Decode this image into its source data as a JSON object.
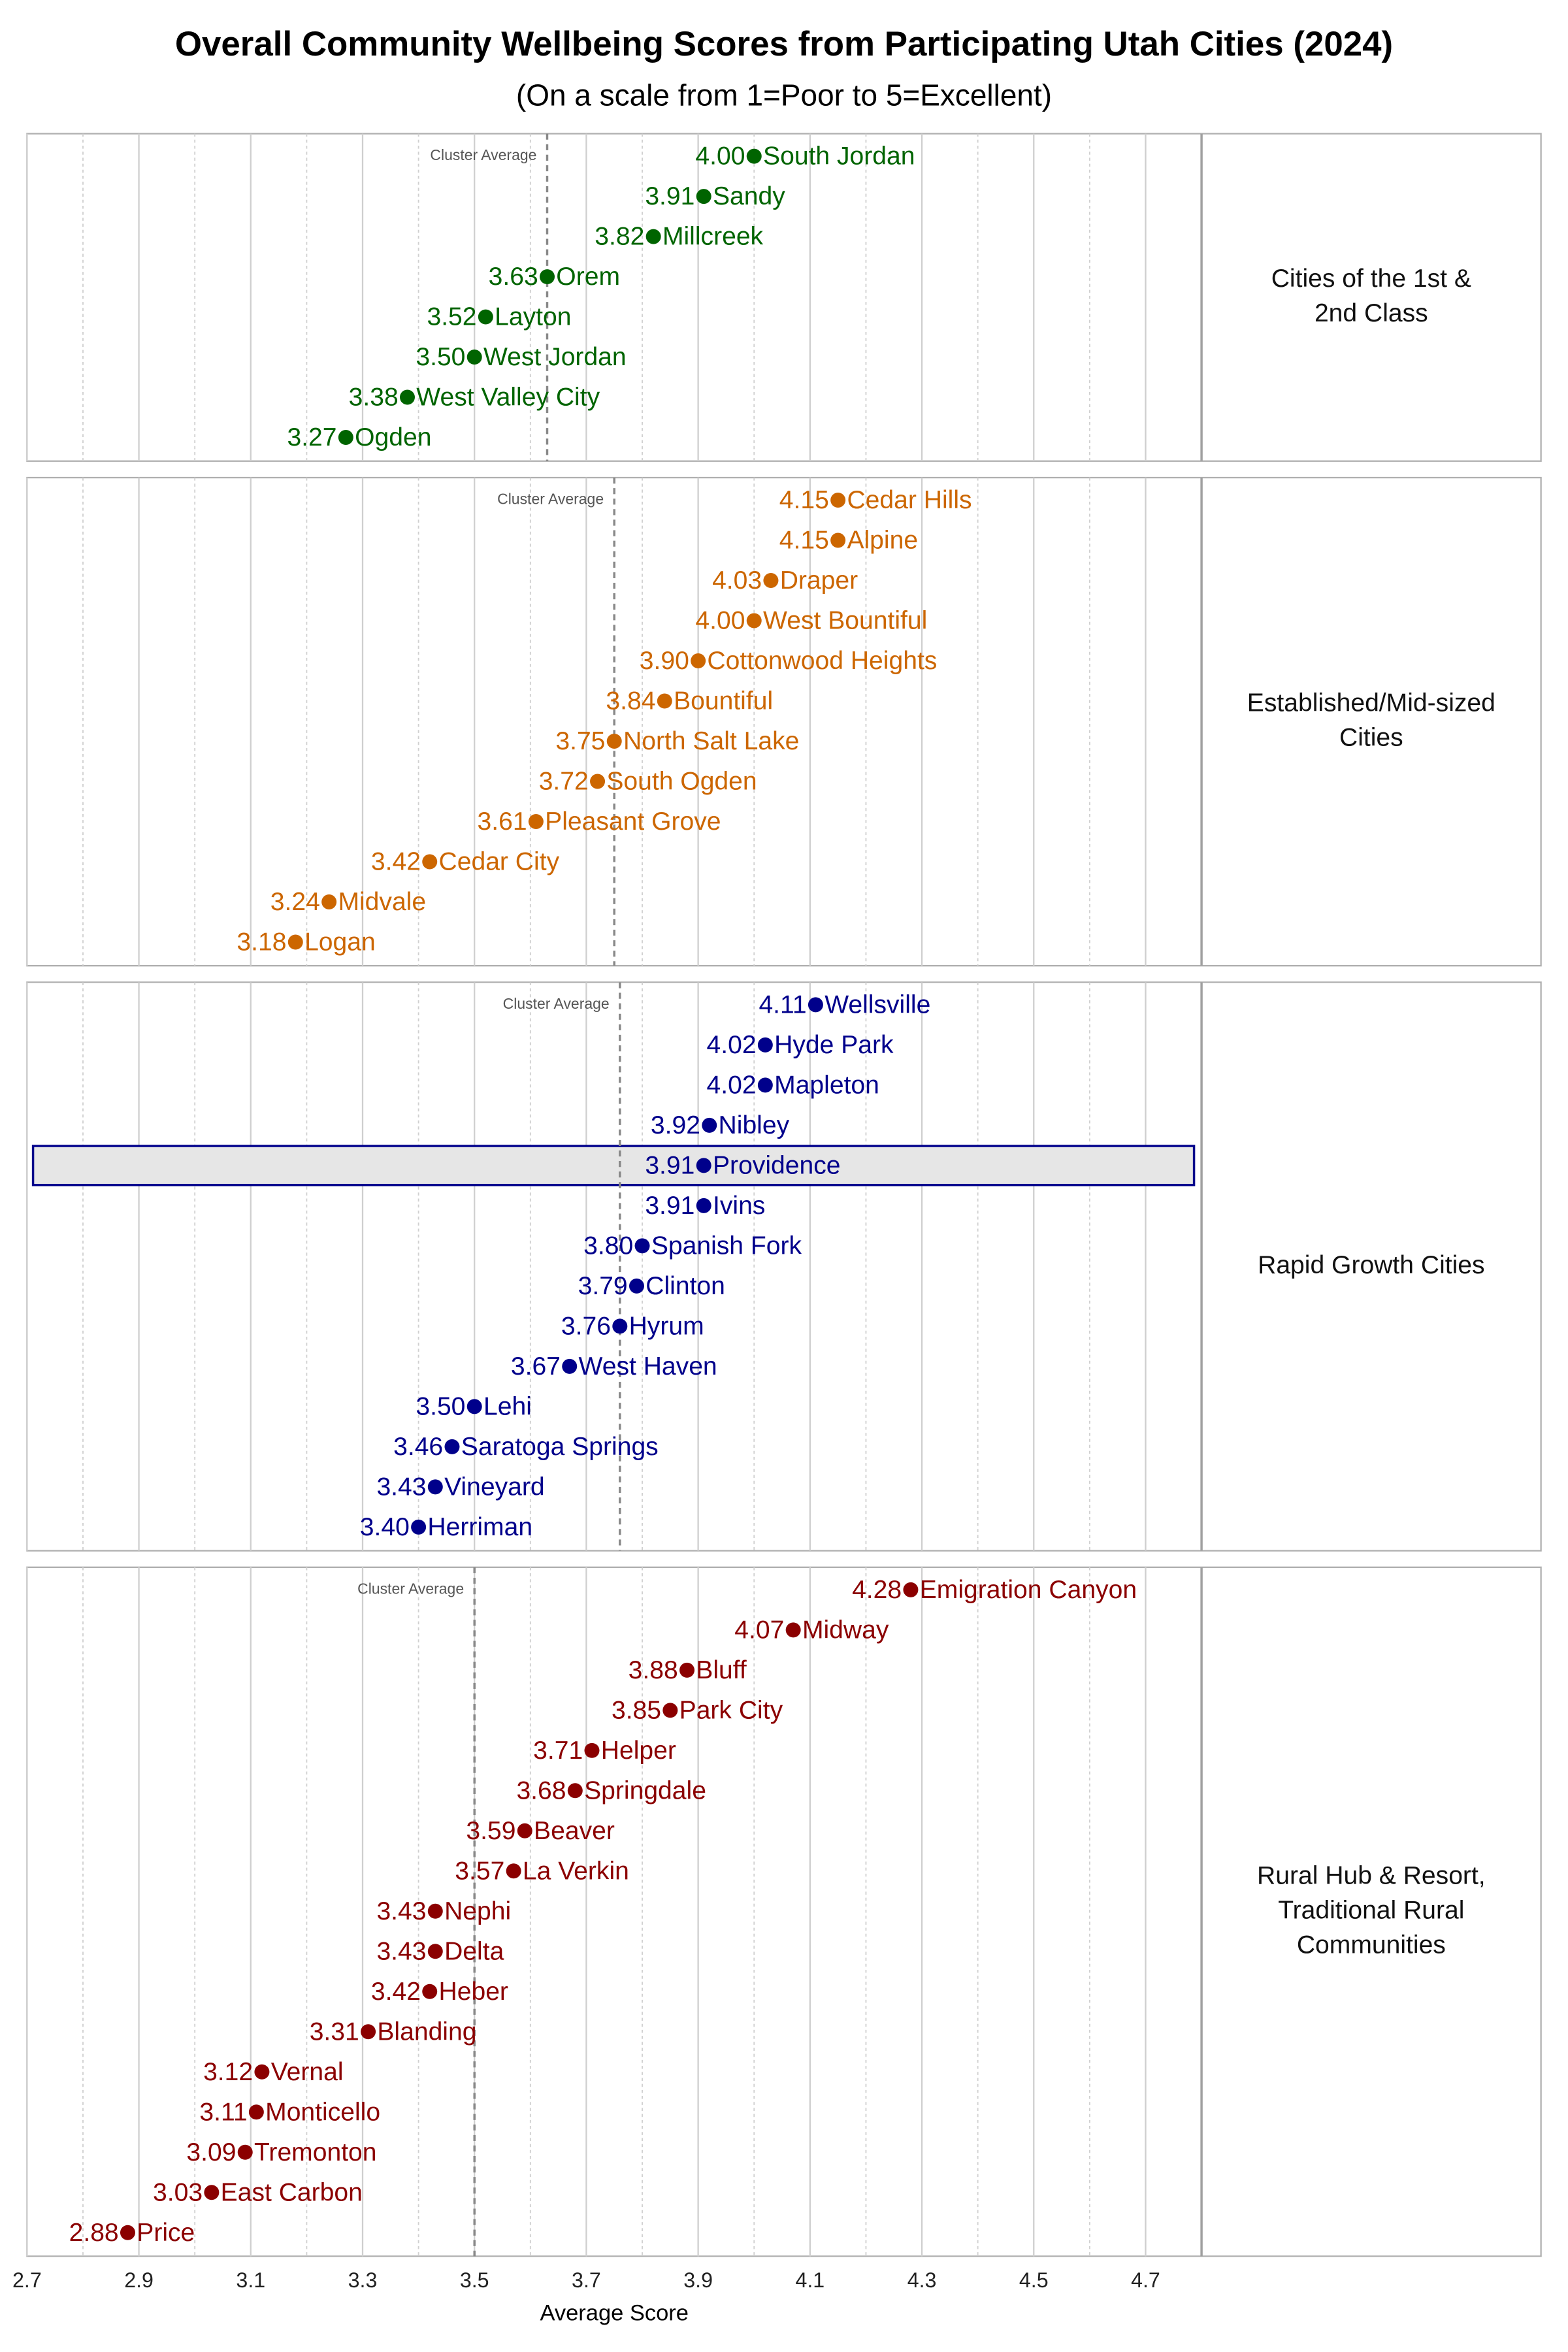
{
  "chart_data": {
    "type": "dot",
    "title": "Overall Community Wellbeing Scores from Participating Utah Cities (2024)",
    "subtitle": "(On a scale from 1=Poor to 5=Excellent)",
    "x_label": "Average Score",
    "xlim": [
      2.7,
      4.8
    ],
    "xticks": [
      2.7,
      2.9,
      3.1,
      3.3,
      3.5,
      3.7,
      3.9,
      4.1,
      4.3,
      4.5,
      4.7
    ],
    "minor_xticks": [
      2.8,
      3.0,
      3.2,
      3.4,
      3.6,
      3.8,
      4.0,
      4.2,
      4.4,
      4.6,
      4.8
    ],
    "grid": true,
    "panels": [
      {
        "label_lines": [
          "Cities of the 1st &",
          "2nd Class"
        ],
        "color": "#006400",
        "cluster_average_label": "Cluster Average",
        "cluster_average": 3.63,
        "categories": [
          "South Jordan",
          "Sandy",
          "Millcreek",
          "Orem",
          "Layton",
          "West Jordan",
          "West Valley City",
          "Ogden"
        ],
        "values": [
          4.0,
          3.91,
          3.82,
          3.63,
          3.52,
          3.5,
          3.38,
          3.27
        ],
        "value_labels": [
          "4.00",
          "3.91",
          "3.82",
          "3.63",
          "3.52",
          "3.50",
          "3.38",
          "3.27"
        ]
      },
      {
        "label_lines": [
          "Established/Mid-sized",
          "Cities"
        ],
        "color": "#cc6600",
        "cluster_average_label": "Cluster Average",
        "cluster_average": 3.75,
        "categories": [
          "Cedar Hills",
          "Alpine",
          "Draper",
          "West Bountiful",
          "Cottonwood Heights",
          "Bountiful",
          "North Salt Lake",
          "South Ogden",
          "Pleasant Grove",
          "Cedar City",
          "Midvale",
          "Logan"
        ],
        "values": [
          4.15,
          4.15,
          4.03,
          4.0,
          3.9,
          3.84,
          3.75,
          3.72,
          3.61,
          3.42,
          3.24,
          3.18
        ],
        "value_labels": [
          "4.15",
          "4.15",
          "4.03",
          "4.00",
          "3.90",
          "3.84",
          "3.75",
          "3.72",
          "3.61",
          "3.42",
          "3.24",
          "3.18"
        ]
      },
      {
        "label_lines": [
          "Rapid Growth Cities"
        ],
        "color": "#00008b",
        "cluster_average_label": "Cluster Average",
        "cluster_average": 3.76,
        "highlight": "Providence",
        "categories": [
          "Wellsville",
          "Hyde Park",
          "Mapleton",
          "Nibley",
          "Providence",
          "Ivins",
          "Spanish Fork",
          "Clinton",
          "Hyrum",
          "West Haven",
          "Lehi",
          "Saratoga Springs",
          "Vineyard",
          "Herriman"
        ],
        "values": [
          4.11,
          4.02,
          4.02,
          3.92,
          3.91,
          3.91,
          3.8,
          3.79,
          3.76,
          3.67,
          3.5,
          3.46,
          3.43,
          3.4
        ],
        "value_labels": [
          "4.11",
          "4.02",
          "4.02",
          "3.92",
          "3.91",
          "3.91",
          "3.80",
          "3.79",
          "3.76",
          "3.67",
          "3.50",
          "3.46",
          "3.43",
          "3.40"
        ]
      },
      {
        "label_lines": [
          "Rural Hub & Resort,",
          "Traditional Rural",
          "Communities"
        ],
        "color": "#8b0000",
        "cluster_average_label": "Cluster Average",
        "cluster_average": 3.5,
        "categories": [
          "Emigration Canyon",
          "Midway",
          "Bluff",
          "Park City",
          "Helper",
          "Springdale",
          "Beaver",
          "La Verkin",
          "Nephi",
          "Delta",
          "Heber",
          "Blanding",
          "Vernal",
          "Monticello",
          "Tremonton",
          "East Carbon",
          "Price"
        ],
        "values": [
          4.28,
          4.07,
          3.88,
          3.85,
          3.71,
          3.68,
          3.59,
          3.57,
          3.43,
          3.43,
          3.42,
          3.31,
          3.12,
          3.11,
          3.09,
          3.03,
          2.88
        ],
        "value_labels": [
          "4.28",
          "4.07",
          "3.88",
          "3.85",
          "3.71",
          "3.68",
          "3.59",
          "3.57",
          "3.43",
          "3.43",
          "3.42",
          "3.31",
          "3.12",
          "3.11",
          "3.09",
          "3.03",
          "2.88"
        ]
      }
    ]
  }
}
